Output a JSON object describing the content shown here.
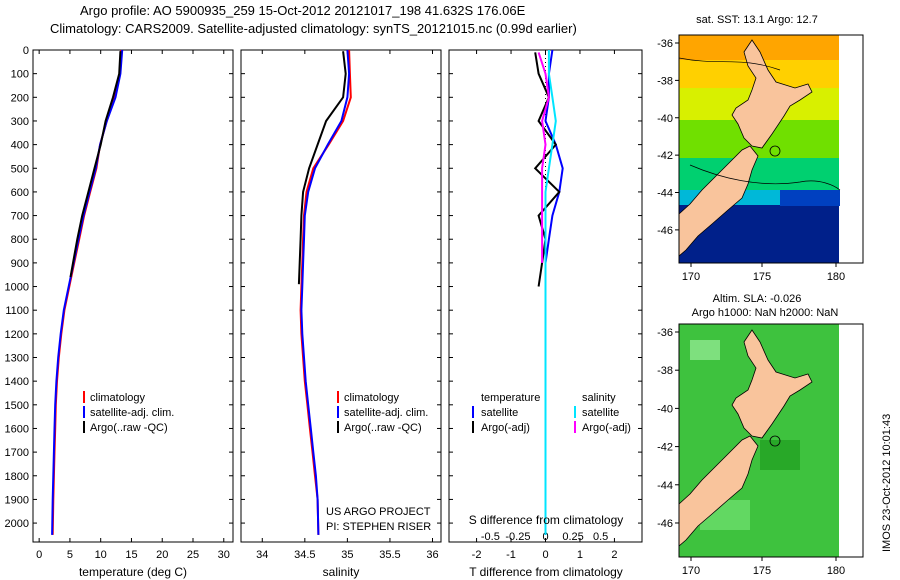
{
  "header": {
    "line1": "Argo profile: AO 5900935_259 15-Oct-2012 20121017_198 41.632S 176.06E",
    "line2": "Climatology: CARS2009. Satellite-adjusted climatology: synTS_20121015.nc (0.99d earlier)"
  },
  "depth_ticks": [
    0,
    100,
    200,
    300,
    400,
    500,
    600,
    700,
    800,
    900,
    1000,
    1100,
    1200,
    1300,
    1400,
    1500,
    1600,
    1700,
    1800,
    1900,
    2000
  ],
  "colors": {
    "climatology": "#ff0000",
    "satellite": "#0000ff",
    "argo": "#000000",
    "sal_satellite": "#00e5ff",
    "sal_argo": "#ff00ff"
  },
  "chart_data": [
    {
      "type": "line",
      "xlabel": "temperature (deg C)",
      "ylabel": "",
      "xlim": [
        -1,
        31.5
      ],
      "ylim": [
        2080,
        0
      ],
      "xticks": [
        0,
        5,
        10,
        15,
        20,
        25,
        30
      ],
      "legend": {
        "placement": "bottom-middle",
        "entries": [
          "climatology",
          "satellite-adj. clim.",
          "Argo(..raw -QC)"
        ]
      },
      "series": [
        {
          "name": "climatology",
          "color": "#ff0000",
          "x": [
            13.3,
            13.1,
            12.3,
            11.0,
            9.9,
            9.3,
            8.3,
            7.3,
            6.5,
            5.7,
            4.9,
            4.1,
            3.6,
            3.2,
            2.9,
            2.7,
            2.6,
            2.5,
            2.4,
            2.3,
            2.2
          ],
          "y": [
            0,
            100,
            200,
            300,
            400,
            500,
            600,
            700,
            800,
            900,
            1000,
            1100,
            1200,
            1300,
            1400,
            1500,
            1600,
            1700,
            1800,
            1900,
            2050
          ]
        },
        {
          "name": "satellite-adj. clim.",
          "color": "#0000ff",
          "x": [
            13.5,
            13.2,
            12.4,
            11.0,
            9.9,
            9.2,
            8.2,
            7.2,
            6.4,
            5.6,
            4.8,
            4.0,
            3.5,
            3.1,
            2.8,
            2.6,
            2.5,
            2.4,
            2.3,
            2.2,
            2.1
          ],
          "y": [
            0,
            100,
            200,
            300,
            400,
            500,
            600,
            700,
            800,
            900,
            1000,
            1100,
            1200,
            1300,
            1400,
            1500,
            1600,
            1700,
            1800,
            1900,
            2050
          ]
        },
        {
          "name": "Argo(..raw -QC)",
          "color": "#000000",
          "x": [
            13.2,
            13.0,
            12.0,
            10.8,
            10.0,
            9.0,
            8.0,
            7.0,
            6.2,
            5.5,
            5.1
          ],
          "y": [
            5,
            100,
            200,
            300,
            400,
            500,
            600,
            700,
            800,
            900,
            960
          ]
        }
      ]
    },
    {
      "type": "line",
      "xlabel": "salinity",
      "ylabel": "",
      "xlim": [
        33.75,
        36.1
      ],
      "ylim": [
        2080,
        0
      ],
      "xticks": [
        34,
        34.5,
        35,
        35.5,
        36
      ],
      "legend": {
        "placement": "bottom-middle",
        "entries": [
          "climatology",
          "satellite-adj. clim.",
          "Argo(..raw -QC)"
        ]
      },
      "annotations": [
        "US ARGO PROJECT",
        "PI: STEPHEN RISER"
      ],
      "series": [
        {
          "name": "climatology",
          "color": "#ff0000",
          "x": [
            35.02,
            35.03,
            35.04,
            34.95,
            34.78,
            34.6,
            34.52,
            34.49,
            34.48,
            34.47,
            34.46,
            34.45,
            34.46,
            34.48,
            34.5,
            34.53,
            34.56,
            34.59,
            34.62,
            34.65,
            34.66
          ],
          "y": [
            0,
            100,
            200,
            300,
            400,
            500,
            600,
            700,
            800,
            900,
            1000,
            1100,
            1200,
            1300,
            1400,
            1500,
            1600,
            1700,
            1800,
            1900,
            2050
          ]
        },
        {
          "name": "satellite-adj. clim.",
          "color": "#0000ff",
          "x": [
            35.0,
            35.02,
            35.0,
            34.93,
            34.77,
            34.62,
            34.54,
            34.5,
            34.49,
            34.48,
            34.47,
            34.46,
            34.47,
            34.49,
            34.51,
            34.54,
            34.57,
            34.6,
            34.63,
            34.65,
            34.66
          ],
          "y": [
            0,
            100,
            200,
            300,
            400,
            500,
            600,
            700,
            800,
            900,
            1000,
            1100,
            1200,
            1300,
            1400,
            1500,
            1600,
            1700,
            1800,
            1900,
            2050
          ]
        },
        {
          "name": "Argo(..raw -QC)",
          "color": "#000000",
          "x": [
            34.95,
            34.98,
            34.95,
            34.75,
            34.65,
            34.55,
            34.48,
            34.46,
            34.45,
            34.44,
            34.43
          ],
          "y": [
            5,
            100,
            200,
            300,
            400,
            500,
            600,
            700,
            800,
            900,
            990
          ]
        }
      ]
    },
    {
      "type": "line",
      "xlabel": "T difference from climatology",
      "title": "S difference from climatology",
      "xlim": [
        -2.8,
        2.8
      ],
      "ylim": [
        2080,
        0
      ],
      "xticks": [
        -2,
        -1,
        0,
        1,
        2
      ],
      "top_ticks": [
        "-0.5",
        "-0.25",
        "0",
        "0.25",
        "0.5"
      ],
      "legend": {
        "placement": "bottom",
        "entries": [
          "temperature",
          "satellite",
          "Argo(-adj)",
          "salinity",
          "satellite",
          "Argo(-adj)"
        ]
      },
      "series": [
        {
          "name": "satellite",
          "color": "#0000ff",
          "x": [
            0.2,
            0.1,
            0.1,
            0.0,
            0.3,
            0.5,
            0.4,
            0.2,
            0.1,
            0.0,
            0.0,
            0.0,
            0.0,
            0.0,
            0.0,
            0.0,
            0.0,
            0.0,
            0.0,
            0.0
          ],
          "y": [
            0,
            100,
            200,
            300,
            400,
            500,
            600,
            700,
            800,
            900,
            1000,
            1200,
            1400,
            1600,
            1800,
            1900,
            1950,
            2000,
            2030,
            2050
          ]
        },
        {
          "name": "Argo(-adj)",
          "color": "#000000",
          "x": [
            -0.3,
            -0.2,
            0.1,
            -0.2,
            0.3,
            -0.3,
            0.4,
            -0.2,
            0.0,
            -0.1,
            -0.2
          ],
          "y": [
            10,
            100,
            200,
            300,
            400,
            500,
            600,
            700,
            800,
            900,
            1000
          ]
        },
        {
          "name": "satellite",
          "color": "#00e5ff",
          "x": [
            0.1,
            0.1,
            0.2,
            0.3,
            0.2,
            0.1,
            0.0,
            0.0,
            0.0,
            0.0,
            0.0,
            0.0,
            0.0,
            0.0,
            0.0
          ],
          "y": [
            0,
            100,
            200,
            300,
            400,
            500,
            600,
            800,
            1000,
            1200,
            1400,
            1600,
            1800,
            1950,
            2050
          ]
        },
        {
          "name": "Argo(-adj)",
          "color": "#ff00ff",
          "x": [
            -0.2,
            0.0,
            0.1,
            -0.1,
            0.0,
            -0.1,
            -0.1,
            -0.1,
            -0.1,
            -0.1
          ],
          "y": [
            10,
            100,
            200,
            300,
            400,
            500,
            600,
            700,
            800,
            900
          ]
        }
      ]
    }
  ],
  "maps": [
    {
      "title": "sat. SST: 13.1 Argo: 12.7",
      "subtitle": "",
      "xticks": [
        "170",
        "175",
        "180"
      ],
      "yticks": [
        "-36",
        "-38",
        "-40",
        "-42",
        "-44",
        "-46"
      ]
    },
    {
      "title": "Altim. SLA: -0.026",
      "subtitle": "Argo h1000: NaN h2000: NaN",
      "xticks": [
        "170",
        "175",
        "180"
      ],
      "yticks": [
        "-36",
        "-38",
        "-40",
        "-42",
        "-44",
        "-46"
      ]
    }
  ],
  "footer_stamp": "IMOS 23-Oct-2012 10:01:43"
}
